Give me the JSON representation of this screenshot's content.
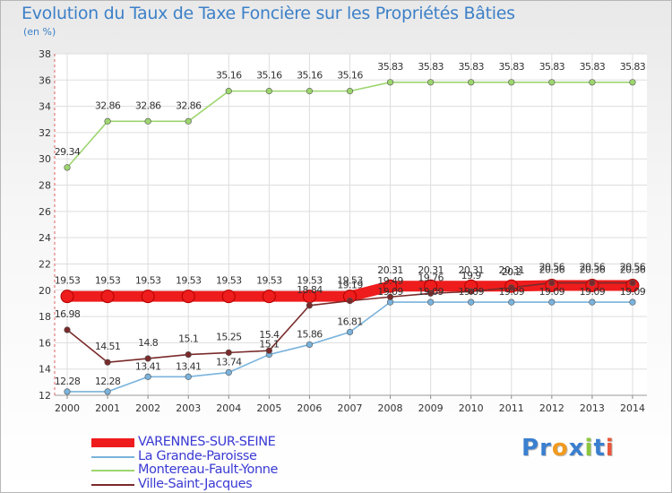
{
  "title": "Evolution du Taux de Taxe Foncière sur les Propriétés Bâties",
  "unit_label": "(en %)",
  "brand": {
    "text": "Proxiti",
    "letters": [
      {
        "ch": "P",
        "color": "#3a7fd0"
      },
      {
        "ch": "r",
        "color": "#3a7fd0"
      },
      {
        "ch": "o",
        "color": "#f19a1f"
      },
      {
        "ch": "x",
        "color": "#3a7fd0"
      },
      {
        "ch": "i",
        "color": "#8cc63f"
      },
      {
        "ch": "t",
        "color": "#3a7fd0"
      },
      {
        "ch": "i",
        "color": "#e8573a"
      }
    ]
  },
  "chart_data": {
    "type": "line",
    "title": "Evolution du Taux de Taxe Foncière sur les Propriétés Bâties",
    "ylabel": "(en %)",
    "xlabel": "",
    "x": [
      "2000",
      "2001",
      "2002",
      "2003",
      "2004",
      "2005",
      "2006",
      "2007",
      "2008",
      "2009",
      "2010",
      "2011",
      "2012",
      "2013",
      "2014"
    ],
    "ylim": [
      12,
      38
    ],
    "yticks": [
      12,
      14,
      16,
      18,
      20,
      22,
      24,
      26,
      28,
      30,
      32,
      34,
      36,
      38
    ],
    "grid": true,
    "legend_position": "bottom-left",
    "series": [
      {
        "name": "VARENNES-SUR-SEINE",
        "color": "#ee1c1c",
        "thick": true,
        "values": [
          19.53,
          19.53,
          19.53,
          19.53,
          19.53,
          19.53,
          19.53,
          19.53,
          20.31,
          20.31,
          20.31,
          20.31,
          20.36,
          20.36,
          20.36
        ],
        "labels": [
          "19.53",
          "19.53",
          "19.53",
          "19.53",
          "19.53",
          "19.53",
          "19.53",
          "19.53",
          "20.31",
          "20.31",
          "20.31",
          "20.31",
          "20.36",
          "20.36",
          "20.36"
        ]
      },
      {
        "name": "La Grande-Paroisse",
        "color": "#7ab3dc",
        "thick": false,
        "values": [
          12.28,
          12.28,
          13.41,
          13.41,
          13.74,
          15.1,
          15.86,
          16.81,
          19.09,
          19.09,
          19.09,
          19.09,
          19.09,
          19.09,
          19.09
        ],
        "labels": [
          "12.28",
          "12.28",
          "13.41",
          "13.41",
          "13.74",
          "15.1",
          "15.86",
          "16.81",
          "19.09",
          "19.09",
          "19.09",
          "19.09",
          "19.09",
          "19.09",
          "19.09"
        ]
      },
      {
        "name": "Montereau-Fault-Yonne",
        "color": "#9dd56f",
        "thick": false,
        "values": [
          29.34,
          32.86,
          32.86,
          32.86,
          35.16,
          35.16,
          35.16,
          35.16,
          35.83,
          35.83,
          35.83,
          35.83,
          35.83,
          35.83,
          35.83
        ],
        "labels": [
          "29.34",
          "32.86",
          "32.86",
          "32.86",
          "35.16",
          "35.16",
          "35.16",
          "35.16",
          "35.83",
          "35.83",
          "35.83",
          "35.83",
          "35.83",
          "35.83",
          "35.83"
        ]
      },
      {
        "name": "Ville-Saint-Jacques",
        "color": "#7a2a2a",
        "thick": false,
        "values": [
          16.98,
          14.51,
          14.8,
          15.1,
          15.25,
          15.4,
          18.84,
          19.19,
          19.49,
          19.76,
          19.9,
          20.2,
          20.56,
          20.56,
          20.56
        ],
        "labels": [
          "16.98",
          "14.51",
          "14.8",
          "15.1",
          "15.25",
          "15.4",
          "18.84",
          "19.19",
          "19.49",
          "19.76",
          "19.9",
          "20.2",
          "20.56",
          "20.56",
          "20.56"
        ]
      }
    ]
  }
}
